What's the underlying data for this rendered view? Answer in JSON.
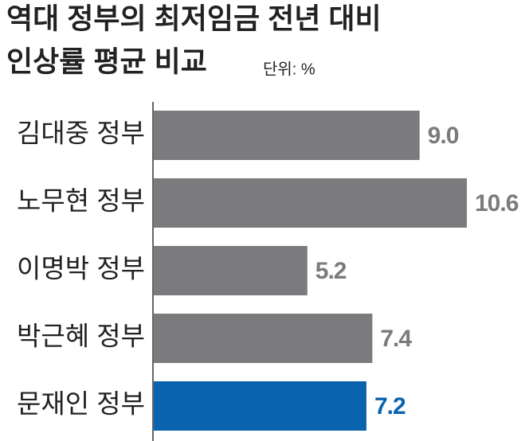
{
  "chart_data": {
    "type": "hbar",
    "title": [
      "역대 정부의 최저임금 전년 대비",
      "인상률 평균 비교"
    ],
    "subtitle": "단위: %",
    "categories": [
      "김대중 정부",
      "노무현 정부",
      "이명박 정부",
      "박근혜 정부",
      "문재인 정부"
    ],
    "values": [
      9.0,
      10.6,
      5.2,
      7.4,
      7.2
    ],
    "value_labels": [
      "9.0",
      "10.6",
      "5.2",
      "7.4",
      "7.2"
    ],
    "colors": [
      "#7b7b7d",
      "#7b7b7d",
      "#7b7b7d",
      "#7b7b7d",
      "#0a64ad"
    ]
  }
}
